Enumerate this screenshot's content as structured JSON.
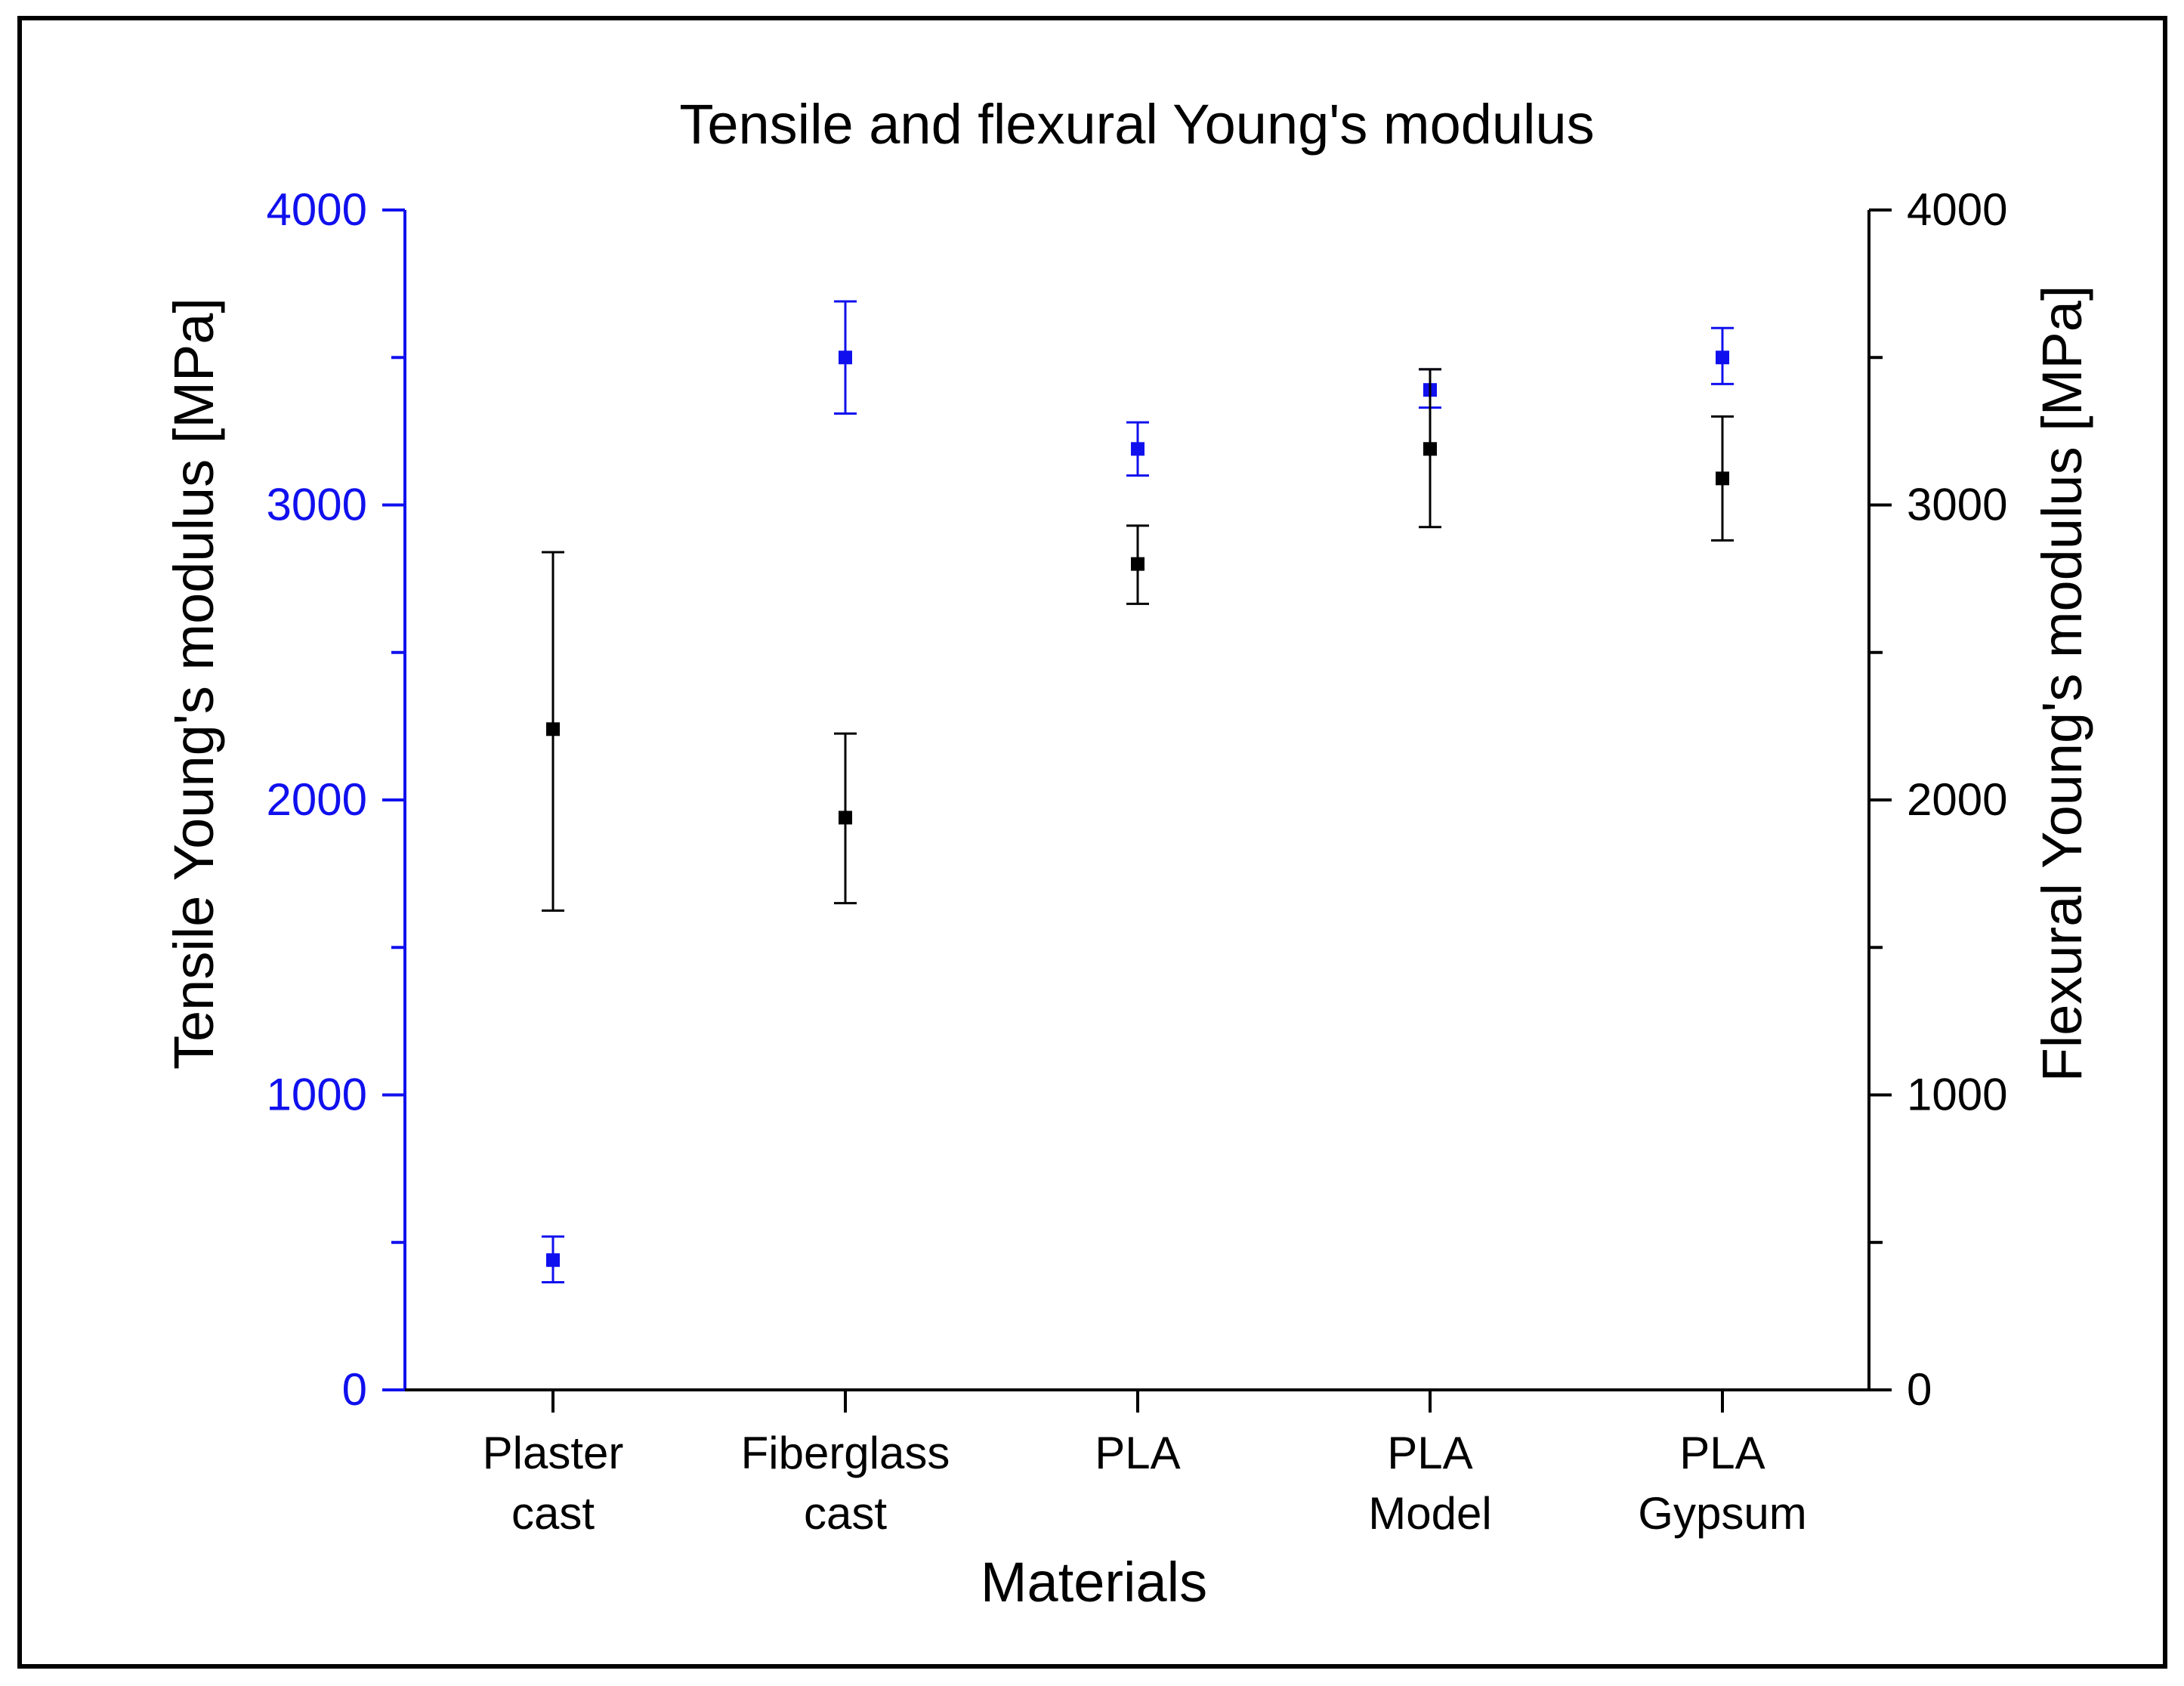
{
  "chart_data": {
    "type": "scatter",
    "title": "Tensile and flexural Young's modulus",
    "xlabel": "Materials",
    "ylabel_left": "Tensile Young's modulus [MPa]",
    "ylabel_right": "Flexural Young's modulus [MPa]",
    "ylim": [
      0,
      4000
    ],
    "yticks": [
      0,
      1000,
      2000,
      3000,
      4000
    ],
    "yticks_labels": [
      "0",
      "1000",
      "2000",
      "3000",
      "4000"
    ],
    "categories": [
      {
        "lines": [
          "Plaster",
          "cast"
        ]
      },
      {
        "lines": [
          "Fiberglass",
          "cast"
        ]
      },
      {
        "lines": [
          "PLA"
        ]
      },
      {
        "lines": [
          "PLA",
          "Model"
        ]
      },
      {
        "lines": [
          "PLA",
          "Gypsum"
        ]
      }
    ],
    "series": [
      {
        "name": "Tensile",
        "axis": "left",
        "color": "#1010ee",
        "values": [
          440,
          3500,
          3190,
          3390,
          3500
        ],
        "error_low": [
          365,
          3310,
          3100,
          3330,
          3410
        ],
        "error_high": [
          520,
          3690,
          3280,
          3460,
          3600
        ]
      },
      {
        "name": "Flexural",
        "axis": "right",
        "color": "#000000",
        "values": [
          2240,
          1940,
          2800,
          3190,
          3090
        ],
        "error_low": [
          1625,
          1650,
          2665,
          2925,
          2880
        ],
        "error_high": [
          2840,
          2225,
          2930,
          3460,
          3300
        ]
      }
    ],
    "colors": {
      "left_axis": "#1010ee",
      "right_axis": "#000000"
    }
  }
}
